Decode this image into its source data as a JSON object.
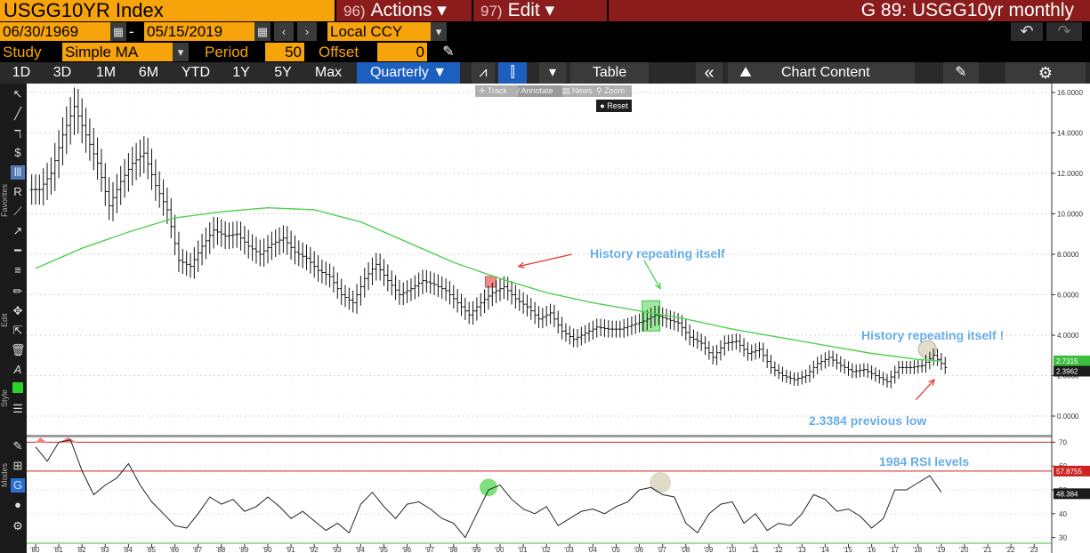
{
  "header": {
    "security": "USGG10YR Index",
    "actions_num": "96)",
    "actions_label": "Actions ▾",
    "edit_num": "97)",
    "edit_label": "Edit ▾",
    "chart_id": "G 89: USGG10yr monthly"
  },
  "range": {
    "start_date": "06/30/1969",
    "separator": "-",
    "end_date": "05/15/2019",
    "currency": "Local CCY"
  },
  "study": {
    "label": "Study",
    "value": "Simple MA",
    "period_label": "Period",
    "period_value": "50",
    "offset_label": "Offset",
    "offset_value": "0"
  },
  "toolbar": {
    "periods": [
      "1D",
      "3D",
      "1M",
      "6M",
      "YTD",
      "1Y",
      "5Y",
      "Max"
    ],
    "frequency": "Quarterly ▼",
    "table_label": "Table",
    "chart_content_label": "Chart Content"
  },
  "overlay_buttons": [
    "Track",
    "Annotate",
    "News",
    "Zoom"
  ],
  "reset_label": "Reset",
  "left_labels": {
    "favorites": "Favorites",
    "edit": "Edit",
    "style": "Style",
    "modes": "Modes"
  },
  "colors": {
    "brand_orange": "#f7a30a",
    "menu_red": "#8a1c1c",
    "active_blue": "#1c5fbf",
    "ma_line": "#4fd24f",
    "annotation_text": "#67aee8",
    "arrow": "#e23b3b",
    "rsi_level_line": "#cc2222"
  },
  "chart_data": [
    {
      "type": "line",
      "series": [
        {
          "name": "USGG10YR Index",
          "style": "ohlc-bars",
          "x": [
            1980,
            1980.5,
            1981,
            1981.5,
            1982,
            1982.5,
            1983,
            1983.5,
            1984,
            1984.5,
            1985,
            1985.5,
            1986,
            1986.5,
            1987,
            1987.5,
            1988,
            1988.5,
            1989,
            1989.5,
            1990,
            1990.5,
            1991,
            1991.5,
            1992,
            1992.5,
            1993,
            1993.5,
            1994,
            1994.5,
            1995,
            1995.5,
            1996,
            1996.5,
            1997,
            1997.5,
            1998,
            1998.5,
            1999,
            1999.5,
            2000,
            2000.5,
            2001,
            2001.5,
            2002,
            2002.5,
            2003,
            2003.5,
            2004,
            2004.5,
            2005,
            2005.5,
            2006,
            2006.5,
            2007,
            2007.5,
            2008,
            2008.5,
            2009,
            2009.5,
            2010,
            2010.5,
            2011,
            2011.5,
            2012,
            2012.5,
            2013,
            2013.5,
            2014,
            2014.5,
            2015,
            2015.5,
            2016,
            2016.5,
            2017,
            2017.5,
            2018,
            2018.5,
            2019
          ],
          "y": [
            11.2,
            12.0,
            13.9,
            15.3,
            13.9,
            12.5,
            10.4,
            11.6,
            12.5,
            13.0,
            11.4,
            10.2,
            7.7,
            7.4,
            8.4,
            9.2,
            8.9,
            9.0,
            8.4,
            8.0,
            8.5,
            8.8,
            8.1,
            7.8,
            7.2,
            6.9,
            6.0,
            5.6,
            6.8,
            7.5,
            6.7,
            6.0,
            6.3,
            6.7,
            6.5,
            6.2,
            5.6,
            5.0,
            5.6,
            6.1,
            6.4,
            5.8,
            5.4,
            4.8,
            5.1,
            4.2,
            3.8,
            4.1,
            4.4,
            4.3,
            4.3,
            4.5,
            4.7,
            5.0,
            4.8,
            4.6,
            3.9,
            3.6,
            2.9,
            3.6,
            3.7,
            3.1,
            3.3,
            2.4,
            2.0,
            1.8,
            2.0,
            2.6,
            2.9,
            2.5,
            2.2,
            2.3,
            2.0,
            1.7,
            2.4,
            2.4,
            2.5,
            3.0,
            2.4
          ]
        },
        {
          "name": "Simple MA (50)",
          "x": [
            1980,
            1982,
            1984,
            1986,
            1988,
            1990,
            1992,
            1994,
            1996,
            1998,
            2000,
            2002,
            2004,
            2006,
            2008,
            2010,
            2012,
            2014,
            2016,
            2018,
            2019
          ],
          "y": [
            7.3,
            8.3,
            9.1,
            9.8,
            10.1,
            10.3,
            10.2,
            9.6,
            8.6,
            7.6,
            6.8,
            6.1,
            5.6,
            5.2,
            4.8,
            4.3,
            3.9,
            3.5,
            3.1,
            2.8,
            2.73
          ]
        }
      ],
      "ylim": [
        0,
        16
      ],
      "yticks": [
        "16.0000",
        "14.0000",
        "12.0000",
        "10.0000",
        "8.0000",
        "6.0000",
        "4.0000",
        "2.0000",
        "0.0000"
      ],
      "last_value_labels": [
        "2.7315",
        "2.3962"
      ],
      "annotations": [
        "History repeating itself",
        "History repeating itself !",
        "2.3384 previous low"
      ],
      "grid": true
    },
    {
      "type": "line",
      "series": [
        {
          "name": "RSI",
          "x": [
            1980,
            1980.5,
            1981,
            1981.5,
            1982,
            1982.5,
            1983,
            1983.5,
            1984,
            1984.5,
            1985,
            1985.5,
            1986,
            1986.5,
            1987,
            1987.5,
            1988,
            1988.5,
            1989,
            1989.5,
            1990,
            1990.5,
            1991,
            1991.5,
            1992,
            1992.5,
            1993,
            1993.5,
            1994,
            1994.5,
            1995,
            1995.5,
            1996,
            1996.5,
            1997,
            1997.5,
            1998,
            1998.5,
            1999,
            1999.5,
            2000,
            2000.5,
            2001,
            2001.5,
            2002,
            2002.5,
            2003,
            2003.5,
            2004,
            2004.5,
            2005,
            2005.5,
            2006,
            2006.5,
            2007,
            2007.5,
            2008,
            2008.5,
            2009,
            2009.5,
            2010,
            2010.5,
            2011,
            2011.5,
            2012,
            2012.5,
            2013,
            2013.5,
            2014,
            2014.5,
            2015,
            2015.5,
            2016,
            2016.5,
            2017,
            2017.5,
            2018,
            2018.5,
            2019
          ],
          "y": [
            68,
            62,
            70,
            71,
            58,
            48,
            52,
            55,
            61,
            52,
            45,
            40,
            35,
            34,
            40,
            47,
            44,
            46,
            41,
            43,
            47,
            43,
            38,
            41,
            37,
            33,
            36,
            32,
            44,
            49,
            43,
            38,
            44,
            45,
            42,
            38,
            36,
            30,
            40,
            50,
            52,
            46,
            42,
            40,
            43,
            35,
            38,
            41,
            42,
            40,
            43,
            45,
            50,
            51,
            48,
            47,
            36,
            32,
            40,
            44,
            45,
            36,
            40,
            33,
            36,
            35,
            40,
            48,
            46,
            41,
            42,
            39,
            34,
            38,
            50,
            50,
            53,
            56,
            49
          ]
        }
      ],
      "ylim": [
        28,
        72
      ],
      "levels": [
        70,
        57.8755
      ],
      "yticks": [
        "70",
        "60",
        "50",
        "40",
        "30"
      ],
      "last_value_labels": [
        "57.8755",
        "48.384"
      ],
      "annotations": [
        "1984 RSI levels"
      ]
    }
  ],
  "x_axis_labels": [
    "'80",
    "'81",
    "'82",
    "'83",
    "'84",
    "'85",
    "'86",
    "'87",
    "'88",
    "'89",
    "'90",
    "'91",
    "'92",
    "'93",
    "'94",
    "'95",
    "'96",
    "'97",
    "'98",
    "'99",
    "'00",
    "'01",
    "'02",
    "'03",
    "'04",
    "'05",
    "'06",
    "'07",
    "'08",
    "'09",
    "'10",
    "'11",
    "'12",
    "'13",
    "'14",
    "'15",
    "'16",
    "'17",
    "'18",
    "'19",
    "'20",
    "'21",
    "'22",
    "'23"
  ]
}
